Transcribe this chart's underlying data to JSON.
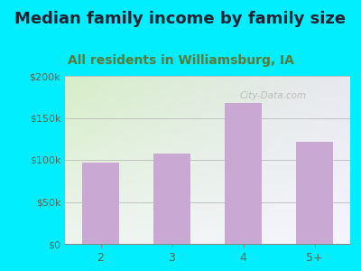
{
  "title": "Median family income by family size",
  "subtitle": "All residents in Williamsburg, IA",
  "categories": [
    "2",
    "3",
    "4",
    "5+"
  ],
  "values": [
    97000,
    108000,
    168000,
    122000
  ],
  "bar_color": "#c9a8d4",
  "ylim": [
    0,
    200000
  ],
  "yticks": [
    0,
    50000,
    100000,
    150000,
    200000
  ],
  "ytick_labels": [
    "$0",
    "$50k",
    "$100k",
    "$150k",
    "$200k"
  ],
  "title_fontsize": 13,
  "subtitle_fontsize": 10,
  "background_outer": "#00eeff",
  "background_inner_topleft": "#d6eec8",
  "background_inner_topright": "#e8e8f0",
  "background_inner_bottom": "#f5f5ff",
  "title_color": "#222233",
  "subtitle_color": "#5a7a3a",
  "tick_color": "#556655",
  "watermark": "City-Data.com"
}
